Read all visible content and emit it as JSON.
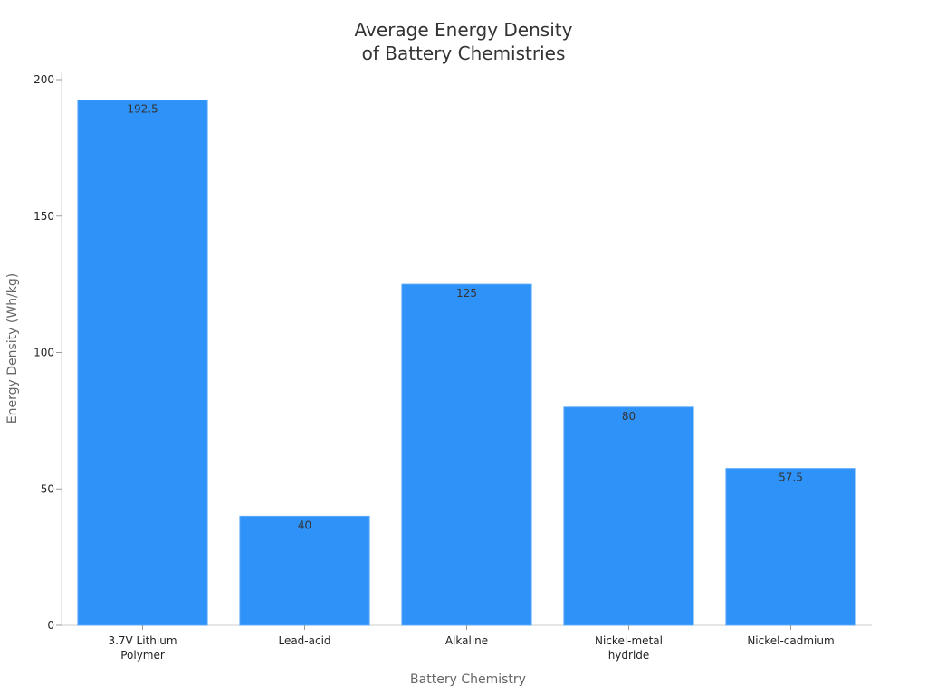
{
  "chart_data": {
    "type": "bar",
    "title": [
      "Average Energy Density",
      "of Battery Chemistries"
    ],
    "xlabel": "Battery Chemistry",
    "ylabel": "Energy Density (Wh/kg)",
    "categories": [
      [
        "3.7V Lithium",
        "Polymer"
      ],
      [
        "Lead-acid"
      ],
      [
        "Alkaline"
      ],
      [
        "Nickel-metal",
        "hydride"
      ],
      [
        "Nickel-cadmium"
      ]
    ],
    "values": [
      192.5,
      40,
      125,
      80,
      57.5
    ],
    "data_labels": [
      "192.5",
      "40",
      "125",
      "80",
      "57.5"
    ],
    "ylim": [
      0,
      200
    ],
    "yticks": [
      0,
      50,
      100,
      150,
      200
    ],
    "ytick_labels": [
      "0",
      "50",
      "100",
      "150",
      "200"
    ],
    "grid": false,
    "legend": "none",
    "colors": {
      "bar": "#2f92f8",
      "bar_edge": "#5aa9f9"
    }
  }
}
